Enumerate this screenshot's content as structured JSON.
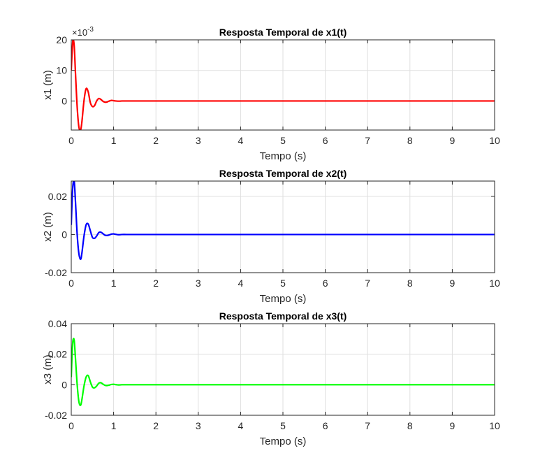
{
  "chart_data": [
    {
      "type": "line",
      "title": "Resposta Temporal de x1(t)",
      "xlabel": "Tempo (s)",
      "ylabel": "x1 (m)",
      "xlim": [
        0,
        10
      ],
      "ylim": [
        -9.5,
        20
      ],
      "xticks": [
        "0",
        "1",
        "2",
        "3",
        "4",
        "5",
        "6",
        "7",
        "8",
        "9",
        "10"
      ],
      "yticks": [
        {
          "value": 20,
          "label": "20"
        },
        {
          "value": 10,
          "label": "10"
        },
        {
          "value": 0,
          "label": "0"
        }
      ],
      "exponent_label": "×10",
      "exponent_power": "-3",
      "grid": true,
      "color": "#ff0000",
      "x": [
        0,
        0.02,
        0.04,
        0.07,
        0.1,
        0.14,
        0.18,
        0.22,
        0.25,
        0.3,
        0.35,
        0.4,
        0.45,
        0.5,
        0.55,
        0.6,
        0.65,
        0.7,
        0.75,
        0.8,
        0.85,
        0.9,
        0.95,
        1.0,
        1.05,
        1.1,
        1.15,
        1.2,
        1.3,
        1.4,
        1.5,
        1.7,
        2.0,
        10
      ],
      "y": [
        10,
        16,
        20,
        18,
        9,
        -2,
        -8.5,
        -9.5,
        -7,
        0,
        4,
        3,
        -0.5,
        -1.8,
        -1.5,
        0,
        0.8,
        0.5,
        -0.1,
        -0.4,
        -0.3,
        0,
        0.2,
        0.1,
        0,
        -0.05,
        -0.05,
        0,
        0,
        0,
        0,
        0,
        0,
        0
      ]
    },
    {
      "type": "line",
      "title": "Resposta Temporal de x2(t)",
      "xlabel": "Tempo (s)",
      "ylabel": "x2 (m)",
      "xlim": [
        0,
        10
      ],
      "ylim": [
        -0.02,
        0.028
      ],
      "xticks": [
        "0",
        "1",
        "2",
        "3",
        "4",
        "5",
        "6",
        "7",
        "8",
        "9",
        "10"
      ],
      "yticks": [
        {
          "value": 0.02,
          "label": "0.02"
        },
        {
          "value": 0,
          "label": "0"
        },
        {
          "value": -0.02,
          "label": "-0.02"
        }
      ],
      "grid": true,
      "color": "#0000ff",
      "x": [
        0,
        0.02,
        0.04,
        0.07,
        0.1,
        0.14,
        0.18,
        0.22,
        0.25,
        0.3,
        0.35,
        0.4,
        0.45,
        0.5,
        0.55,
        0.6,
        0.65,
        0.7,
        0.75,
        0.8,
        0.85,
        0.9,
        0.95,
        1.0,
        1.05,
        1.1,
        1.15,
        1.2,
        1.3,
        1.4,
        1.5,
        1.7,
        2.0,
        10
      ],
      "y": [
        0.005,
        0.018,
        0.026,
        0.028,
        0.017,
        0.0,
        -0.01,
        -0.013,
        -0.01,
        -0.001,
        0.005,
        0.0055,
        0.002,
        -0.0015,
        -0.002,
        -0.0008,
        0.001,
        0.0012,
        0.0004,
        -0.0004,
        -0.0005,
        -0.0002,
        0.0002,
        0.0003,
        0.0001,
        -0.0001,
        -0.0001,
        0,
        0,
        0,
        0,
        0,
        0,
        0
      ]
    },
    {
      "type": "line",
      "title": "Resposta Temporal de x3(t)",
      "xlabel": "Tempo (s)",
      "ylabel": "x3 (m)",
      "xlim": [
        0,
        10
      ],
      "ylim": [
        -0.02,
        0.04
      ],
      "xticks": [
        "0",
        "1",
        "2",
        "3",
        "4",
        "5",
        "6",
        "7",
        "8",
        "9",
        "10"
      ],
      "yticks": [
        {
          "value": 0.04,
          "label": "0.04"
        },
        {
          "value": 0.02,
          "label": "0.02"
        },
        {
          "value": 0,
          "label": "0"
        },
        {
          "value": -0.02,
          "label": "-0.02"
        }
      ],
      "grid": true,
      "color": "#00ff00",
      "x": [
        0,
        0.02,
        0.04,
        0.07,
        0.1,
        0.14,
        0.18,
        0.22,
        0.25,
        0.3,
        0.35,
        0.4,
        0.45,
        0.5,
        0.55,
        0.6,
        0.65,
        0.7,
        0.75,
        0.8,
        0.85,
        0.9,
        0.95,
        1.0,
        1.05,
        1.1,
        1.15,
        1.2,
        1.3,
        1.4,
        1.5,
        1.7,
        2.0,
        10
      ],
      "y": [
        0.005,
        0.02,
        0.029,
        0.029,
        0.017,
        0.0,
        -0.011,
        -0.0135,
        -0.01,
        -0.001,
        0.005,
        0.006,
        0.002,
        -0.0015,
        -0.002,
        -0.0008,
        0.001,
        0.0013,
        0.0004,
        -0.0004,
        -0.0005,
        -0.0002,
        0.0002,
        0.0003,
        0.0001,
        -0.0001,
        -0.0001,
        0,
        0,
        0,
        0,
        0,
        0,
        0
      ]
    }
  ]
}
